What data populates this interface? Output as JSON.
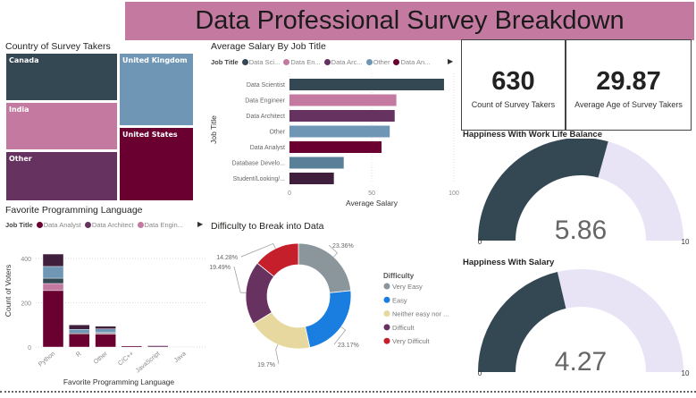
{
  "title": "Data Professional Survey Breakdown",
  "treemap": {
    "title": "Country of Survey Takers",
    "items": [
      {
        "label": "Canada",
        "color": "#344854"
      },
      {
        "label": "India",
        "color": "#c47aa0"
      },
      {
        "label": "Other",
        "color": "#66325f"
      },
      {
        "label": "United Kingdom",
        "color": "#6f97b5"
      },
      {
        "label": "United States",
        "color": "#6a0030"
      }
    ]
  },
  "salary": {
    "title": "Average Salary By Job Title",
    "legend_title": "Job Title",
    "legend": [
      {
        "label": "Data Sci...",
        "color": "#344854"
      },
      {
        "label": "Data En...",
        "color": "#c47aa0"
      },
      {
        "label": "Data Arc...",
        "color": "#66325f"
      },
      {
        "label": "Other",
        "color": "#6f97b5"
      },
      {
        "label": "Data An...",
        "color": "#6a0030"
      }
    ],
    "ylabel": "Job Title",
    "xlabel": "Average Salary"
  },
  "kpi": [
    {
      "value": "630",
      "label": "Count of Survey Takers"
    },
    {
      "value": "29.87",
      "label": "Average Age of Survey Takers"
    }
  ],
  "gauges": [
    {
      "title": "Happiness With Work Life Balance",
      "value": 5.86,
      "value_label": "5.86",
      "min": "0",
      "max": "10"
    },
    {
      "title": "Happiness With Salary",
      "value": 4.27,
      "value_label": "4.27",
      "min": "0",
      "max": "10"
    }
  ],
  "gauge_colors": {
    "fill": "#344854",
    "track": "#e8e4f6"
  },
  "lang": {
    "title": "Favorite Programming Language",
    "legend_title": "Job Title",
    "legend": [
      {
        "label": "Data Analyst",
        "color": "#6a0030"
      },
      {
        "label": "Data Architect",
        "color": "#66325f"
      },
      {
        "label": "Data Engin...",
        "color": "#c47aa0"
      }
    ]
  },
  "donut_title": "Difficulty to Break into Data",
  "chart_data": [
    {
      "type": "bar",
      "orientation": "horizontal",
      "categories": [
        "Data Scientist",
        "Data Engineer",
        "Data Architect",
        "Other",
        "Data Analyst",
        "Database Develo...",
        "Student/Looking/..."
      ],
      "values": [
        94,
        65,
        64,
        61,
        56,
        33,
        27
      ],
      "colors": [
        "#344854",
        "#c47aa0",
        "#66325f",
        "#6f97b5",
        "#6a0030",
        "#5a7f99",
        "#3f1f3b"
      ],
      "xlabel": "Average Salary",
      "ylabel": "Job Title",
      "xlim": [
        0,
        100
      ],
      "xticks": [
        "0",
        "50",
        "100"
      ],
      "grid": true
    },
    {
      "type": "bar",
      "stacked": true,
      "categories": [
        "Python",
        "R",
        "Other",
        "C/C++",
        "JavaScript",
        "Java"
      ],
      "series": [
        {
          "name": "Data Analyst",
          "color": "#6a0030",
          "values": [
            255,
            60,
            58,
            5,
            0,
            0
          ]
        },
        {
          "name": "Data Architect",
          "color": "#66325f",
          "values": [
            0,
            0,
            0,
            0,
            6,
            0
          ]
        },
        {
          "name": "Data Engineer",
          "color": "#c47aa0",
          "values": [
            32,
            0,
            4,
            0,
            0,
            0
          ]
        },
        {
          "color": "#344854",
          "values": [
            24,
            4,
            4,
            1,
            0,
            0
          ]
        },
        {
          "color": "#6f97b5",
          "values": [
            53,
            16,
            16,
            0,
            0,
            2
          ]
        },
        {
          "color": "#3f1f3b",
          "values": [
            56,
            20,
            12,
            0,
            0,
            0
          ]
        }
      ],
      "xlabel": "Favorite Programming Language",
      "ylabel": "Count of Voters",
      "ylim": [
        0,
        430
      ],
      "yticks": [
        "0",
        "200",
        "400"
      ],
      "grid": true
    },
    {
      "type": "pie",
      "donut": true,
      "legend_title": "Difficulty",
      "legend_position": "right",
      "slices": [
        {
          "label": "Very Easy",
          "value": 23.36,
          "text": "23.36%",
          "color": "#8a959c"
        },
        {
          "label": "Easy",
          "value": 23.17,
          "text": "23.17%",
          "color": "#1a7de0"
        },
        {
          "label": "Neither easy nor ...",
          "value": 19.7,
          "text": "19.7%",
          "color": "#e6d89e"
        },
        {
          "label": "Difficult",
          "value": 19.49,
          "text": "19.49%",
          "color": "#67325f"
        },
        {
          "label": "Very Difficult",
          "value": 14.28,
          "text": "14.28%",
          "color": "#c51f2c"
        }
      ]
    }
  ]
}
